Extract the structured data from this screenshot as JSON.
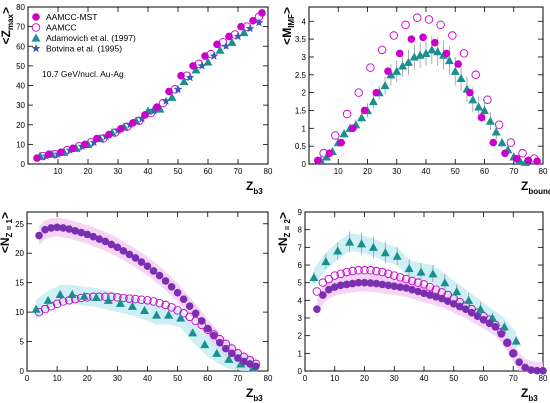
{
  "colors": {
    "aamcc_mst": "#cc00cc",
    "aamcc": "#cc00cc",
    "adamovich": "#1a8f8f",
    "botvina": "#3a5fb0",
    "combined_fill": "#7a2fb0",
    "band_pink": "#f3c6f3",
    "band_cyan": "#bde9ef",
    "err_bar": "#999999"
  },
  "chart_data": [
    {
      "type": "scatter",
      "panel": "top-left",
      "xlabel": "Z",
      "xlabel_sub": "b3",
      "ylabel": "<Z",
      "ylabel_sub": "max",
      "ylabel_end": ">",
      "xlim": [
        0,
        80
      ],
      "ylim": [
        0,
        80
      ],
      "xticks": [
        10,
        20,
        30,
        40,
        50,
        60,
        70,
        80
      ],
      "yticks": [
        0,
        10,
        20,
        30,
        40,
        50,
        60,
        70,
        80
      ],
      "legend_placement": "top-left",
      "annotation": "10.7 GeV/nucl. Au-Ag",
      "series": [
        {
          "name": "AAMCC-MST",
          "style": "filled-circle",
          "color": "#cc00cc",
          "x": [
            3,
            7,
            11,
            15,
            19,
            23,
            27,
            31,
            35,
            39,
            43,
            47,
            51,
            55,
            59,
            63,
            67,
            71,
            75,
            78
          ],
          "y": [
            3,
            5,
            6,
            8,
            10,
            13,
            15,
            18,
            21,
            25,
            29,
            37,
            45,
            50,
            55,
            61,
            65,
            70,
            73,
            77
          ]
        },
        {
          "name": "AAMCC",
          "style": "open-circle",
          "color": "#cc00cc",
          "x": [
            5,
            9,
            13,
            17,
            21,
            25,
            29,
            33,
            37,
            41,
            45,
            49,
            53,
            57,
            61,
            65,
            69,
            73,
            77
          ],
          "y": [
            4,
            5,
            7,
            9,
            11,
            13,
            16,
            19,
            22,
            26,
            31,
            38,
            45,
            51,
            56,
            62,
            66,
            70,
            75
          ]
        },
        {
          "name": "Adamovich et al. (1997)",
          "style": "triangle",
          "color": "#1a8f8f",
          "x": [
            4,
            8,
            12,
            16,
            20,
            24,
            28,
            32,
            36,
            40,
            42,
            44,
            48,
            52,
            56,
            60,
            64,
            68,
            72
          ],
          "y": [
            4,
            5,
            6,
            8,
            10,
            13,
            16,
            19,
            22,
            27,
            28,
            28,
            34,
            42,
            48,
            52,
            58,
            62,
            67
          ]
        },
        {
          "name": "Botvina et al. (1995)",
          "style": "star",
          "color": "#3a5fb0",
          "x": [
            6,
            10,
            14,
            18,
            22,
            26,
            30,
            34,
            38,
            42,
            46,
            50,
            54,
            58,
            62,
            66,
            70,
            74,
            77
          ],
          "y": [
            4,
            5,
            7,
            9,
            11,
            14,
            17,
            20,
            23,
            27,
            32,
            38,
            44,
            50,
            55,
            60,
            65,
            69,
            72
          ]
        }
      ]
    },
    {
      "type": "scatter",
      "panel": "top-right",
      "xlabel": "Z",
      "xlabel_sub": "bound",
      "ylabel": "<M",
      "ylabel_sub": "IMF",
      "ylabel_end": ">",
      "xlim": [
        0,
        80
      ],
      "ylim": [
        0,
        4.4
      ],
      "xticks": [
        10,
        20,
        30,
        40,
        50,
        60,
        70,
        80
      ],
      "yticks": [
        0,
        0.5,
        1,
        1.5,
        2,
        2.5,
        3,
        3.5,
        4
      ],
      "series": [
        {
          "name": "AAMCC-MST",
          "style": "filled-circle",
          "x": [
            3,
            7,
            11,
            15,
            19,
            23,
            27,
            31,
            35,
            39,
            43,
            47,
            51,
            55,
            59,
            63,
            67,
            71,
            75,
            78
          ],
          "y": [
            0.1,
            0.3,
            0.6,
            1.0,
            1.5,
            2.0,
            2.6,
            3.1,
            3.5,
            3.55,
            3.4,
            3.1,
            2.8,
            2.0,
            1.3,
            0.6,
            0.3,
            0.15,
            0.1,
            0.08
          ]
        },
        {
          "name": "AAMCC",
          "style": "open-circle",
          "x": [
            5,
            9,
            13,
            17,
            21,
            25,
            29,
            33,
            37,
            41,
            45,
            49,
            53,
            57,
            61,
            65,
            69,
            73,
            77
          ],
          "y": [
            0.3,
            0.8,
            1.4,
            2.0,
            2.7,
            3.2,
            3.6,
            3.9,
            4.1,
            4.05,
            3.9,
            3.6,
            3.1,
            2.5,
            1.8,
            1.1,
            0.6,
            0.3,
            0.15
          ]
        },
        {
          "name": "Adamovich et al. (1997)",
          "style": "triangle",
          "x": [
            4,
            6,
            8,
            10,
            12,
            14,
            16,
            18,
            20,
            22,
            24,
            26,
            28,
            30,
            32,
            34,
            36,
            38,
            40,
            42,
            44,
            46,
            48,
            50,
            52,
            54,
            56,
            58,
            60,
            62,
            64,
            66,
            68,
            70,
            72,
            74
          ],
          "y": [
            0.1,
            0.2,
            0.35,
            0.6,
            0.85,
            1.0,
            1.1,
            1.3,
            1.5,
            1.75,
            2.0,
            2.2,
            2.5,
            2.6,
            2.75,
            2.85,
            3.0,
            3.05,
            3.1,
            3.2,
            3.15,
            3.05,
            2.9,
            2.6,
            2.4,
            2.1,
            1.8,
            1.6,
            1.5,
            1.2,
            0.9,
            0.6,
            0.4,
            0.2,
            0.1,
            0.05
          ],
          "err": [
            0.05,
            0.08,
            0.1,
            0.12,
            0.12,
            0.14,
            0.15,
            0.15,
            0.2,
            0.2,
            0.2,
            0.25,
            0.3,
            0.3,
            0.3,
            0.35,
            0.35,
            0.35,
            0.35,
            0.4,
            0.4,
            0.4,
            0.4,
            0.4,
            0.35,
            0.35,
            0.35,
            0.3,
            0.3,
            0.25,
            0.2,
            0.15,
            0.1,
            0.08,
            0.05,
            0.03
          ]
        }
      ]
    },
    {
      "type": "scatter",
      "panel": "bottom-left",
      "xlabel": "Z",
      "xlabel_sub": "b3",
      "ylabel": "<N",
      "ylabel_sub": "Z = 1",
      "ylabel_end": ">",
      "xlim": [
        0,
        80
      ],
      "ylim": [
        0,
        27
      ],
      "xticks": [
        0,
        10,
        20,
        30,
        40,
        50,
        60,
        70,
        80
      ],
      "yticks": [
        0,
        5,
        10,
        15,
        20,
        25
      ],
      "series": [
        {
          "name": "AAMCC-MST",
          "style": "combined-filled",
          "x": [
            4,
            6,
            8,
            10,
            12,
            14,
            16,
            18,
            20,
            22,
            24,
            26,
            28,
            30,
            32,
            34,
            36,
            38,
            40,
            42,
            44,
            46,
            48,
            50,
            52,
            54,
            56,
            58,
            60,
            62,
            64,
            66,
            68,
            70,
            72,
            74,
            76
          ],
          "y": [
            23,
            24,
            24.3,
            24.4,
            24.3,
            24.1,
            23.8,
            23.5,
            23.2,
            22.8,
            22.4,
            22,
            21.5,
            21,
            20.4,
            19.8,
            19.2,
            18.5,
            17.8,
            17,
            16.2,
            15.3,
            14.3,
            13.3,
            12.2,
            11,
            9.8,
            8.5,
            7.2,
            6,
            4.8,
            3.8,
            3,
            2.2,
            1.6,
            1.2,
            0.8
          ]
        },
        {
          "name": "AAMCC",
          "style": "open-circle",
          "x": [
            4,
            6,
            8,
            10,
            12,
            14,
            16,
            18,
            20,
            22,
            24,
            26,
            28,
            30,
            32,
            34,
            36,
            38,
            40,
            42,
            44,
            46,
            48,
            50,
            52,
            54,
            56,
            58,
            60,
            62,
            64,
            66,
            68,
            70,
            72,
            74,
            76
          ],
          "y": [
            10,
            10.5,
            11,
            11.4,
            11.8,
            12,
            12.2,
            12.4,
            12.5,
            12.6,
            12.6,
            12.6,
            12.6,
            12.5,
            12.4,
            12.3,
            12.2,
            12.1,
            12,
            11.8,
            11.5,
            11.2,
            10.8,
            10.3,
            9.8,
            9.2,
            8.5,
            7.8,
            7,
            6.2,
            5.4,
            4.6,
            3.8,
            3,
            2.4,
            1.8,
            1.2
          ]
        },
        {
          "name": "Adamovich et al. (1997)",
          "style": "triangle",
          "x": [
            3,
            7,
            11,
            15,
            19,
            23,
            27,
            31,
            35,
            39,
            43,
            47,
            51,
            55,
            59,
            63,
            67,
            71,
            75
          ],
          "y": [
            10.5,
            12,
            13,
            13,
            12.7,
            12.5,
            12,
            11.5,
            11,
            10.3,
            9.5,
            9.5,
            9,
            6.5,
            4.5,
            3,
            2,
            1.2,
            0.5
          ]
        }
      ]
    },
    {
      "type": "scatter",
      "panel": "bottom-right",
      "xlabel": "Z",
      "xlabel_sub": "b3",
      "ylabel": "<N",
      "ylabel_sub": "Z = 2",
      "ylabel_end": ">",
      "xlim": [
        0,
        80
      ],
      "ylim": [
        0,
        9
      ],
      "xticks": [
        0,
        10,
        20,
        30,
        40,
        50,
        60,
        70,
        80
      ],
      "yticks": [
        0,
        1,
        2,
        3,
        4,
        5,
        6,
        7,
        8,
        9
      ],
      "series": [
        {
          "name": "AAMCC-MST",
          "style": "combined-filled",
          "x": [
            4,
            6,
            8,
            10,
            12,
            14,
            16,
            18,
            20,
            22,
            24,
            26,
            28,
            30,
            32,
            34,
            36,
            38,
            40,
            42,
            44,
            46,
            48,
            50,
            52,
            54,
            56,
            58,
            60,
            62,
            64,
            66,
            68,
            70,
            72,
            74,
            76,
            78,
            80
          ],
          "y": [
            3.5,
            4.3,
            4.6,
            4.75,
            4.85,
            4.9,
            4.95,
            5,
            5,
            4.98,
            4.95,
            4.9,
            4.85,
            4.8,
            4.75,
            4.7,
            4.6,
            4.5,
            4.4,
            4.3,
            4.2,
            4.1,
            3.95,
            3.8,
            3.65,
            3.5,
            3.3,
            3.1,
            2.9,
            2.7,
            2.5,
            2.1,
            1.6,
            1.0,
            0.5,
            0.2,
            0.05,
            0.02,
            0.01
          ]
        },
        {
          "name": "AAMCC",
          "style": "open-circle",
          "x": [
            4,
            6,
            8,
            10,
            12,
            14,
            16,
            18,
            20,
            22,
            24,
            26,
            28,
            30,
            32,
            34,
            36,
            38,
            40,
            42,
            44,
            46,
            48,
            50,
            52,
            54,
            56,
            58,
            60,
            62,
            64,
            66,
            68,
            70
          ],
          "y": [
            4.5,
            5,
            5.2,
            5.4,
            5.5,
            5.6,
            5.65,
            5.7,
            5.7,
            5.7,
            5.65,
            5.6,
            5.5,
            5.4,
            5.3,
            5.2,
            5.1,
            5,
            4.9,
            4.75,
            4.6,
            4.45,
            4.3,
            4.1,
            3.9,
            3.7,
            3.5,
            3.3,
            3.1,
            2.9,
            2.6,
            2.2,
            1.6,
            1.0
          ]
        },
        {
          "name": "Adamovich et al. (1997)",
          "style": "triangle",
          "x": [
            3,
            7,
            11,
            15,
            19,
            23,
            27,
            31,
            35,
            39,
            43,
            47,
            51,
            55,
            59,
            63,
            67,
            71
          ],
          "y": [
            5.3,
            6.2,
            6.8,
            7.3,
            7.2,
            7.0,
            6.7,
            6.5,
            5.8,
            5.6,
            5.5,
            5.0,
            4.5,
            4.0,
            3.5,
            3.0,
            2.5,
            1.7
          ],
          "err": [
            0.3,
            0.4,
            0.5,
            0.6,
            0.6,
            0.6,
            0.6,
            0.5,
            0.5,
            0.5,
            0.5,
            0.5,
            0.4,
            0.4,
            0.4,
            0.3,
            0.3,
            0.3
          ]
        }
      ]
    }
  ]
}
